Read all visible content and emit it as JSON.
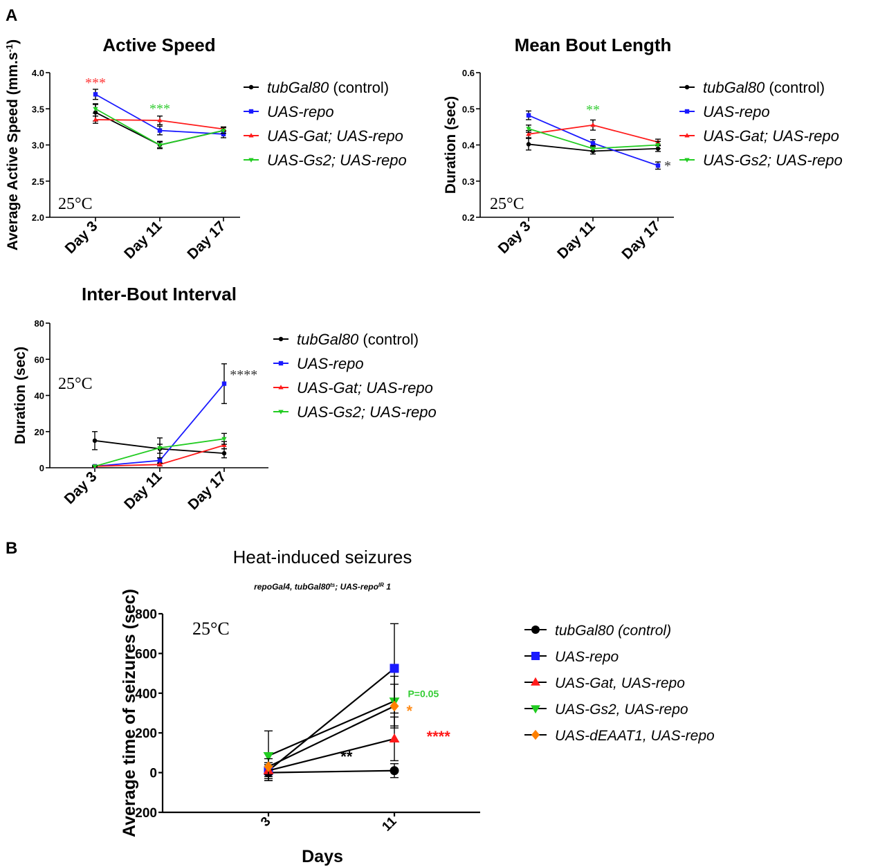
{
  "figure": {
    "panel_a_label": "A",
    "panel_b_label": "B"
  },
  "chart_data": [
    {
      "id": "speed",
      "type": "line",
      "title": "Active Speed",
      "ylabel": "Average Active Speed (mm.s",
      "ylabel_sup": "-1",
      "ylabel_close": ")",
      "categories": [
        "Day 3",
        "Day 11",
        "Day 17"
      ],
      "ylim": [
        2.0,
        4.0
      ],
      "yticks": [
        2.0,
        2.5,
        3.0,
        3.5,
        4.0
      ],
      "ytick_labels": [
        "2.0",
        "2.5",
        "3.0",
        "3.5",
        "4.0"
      ],
      "grid": false,
      "legend": "right",
      "temperature": "25°C",
      "series": [
        {
          "name_italic": "tubGal80",
          "name_rest": " (control)",
          "color": "#000000",
          "marker": "circle",
          "values": [
            3.45,
            3.0,
            3.2
          ],
          "errors": [
            0.12,
            0.05,
            0.04
          ]
        },
        {
          "name_italic": "UAS-repo",
          "name_rest": "",
          "color": "#1a1aff",
          "marker": "square",
          "values": [
            3.7,
            3.2,
            3.15
          ],
          "errors": [
            0.07,
            0.06,
            0.05
          ]
        },
        {
          "name_italic": "UAS-Gat; UAS-repo",
          "name_rest": "",
          "color": "#ff1a1a",
          "marker": "triangle-up",
          "values": [
            3.35,
            3.34,
            3.22
          ],
          "errors": [
            0.05,
            0.06,
            0.03
          ]
        },
        {
          "name_italic": "UAS-Gs2; UAS-repo",
          "name_rest": "",
          "color": "#22cc22",
          "marker": "triangle-down",
          "values": [
            3.5,
            3.0,
            3.2
          ],
          "errors": [
            0.06,
            0.04,
            0.04
          ]
        }
      ],
      "annotations": [
        {
          "text": "***",
          "color": "#ff3333",
          "cat": 0,
          "y": 3.8
        },
        {
          "text": "***",
          "color": "#33cc33",
          "cat": 1,
          "y": 3.44
        }
      ]
    },
    {
      "id": "bout",
      "type": "line",
      "title": "Mean Bout Length",
      "ylabel": "Duration (sec)",
      "categories": [
        "Day 3",
        "Day 11",
        "Day 17"
      ],
      "ylim": [
        0.2,
        0.6
      ],
      "yticks": [
        0.2,
        0.3,
        0.4,
        0.5,
        0.6
      ],
      "ytick_labels": [
        "0.2",
        "0.3",
        "0.4",
        "0.5",
        "0.6"
      ],
      "grid": false,
      "legend": "right",
      "temperature": "25°C",
      "series": [
        {
          "name_italic": "tubGal80",
          "name_rest": " (control)",
          "color": "#000000",
          "marker": "circle",
          "values": [
            0.402,
            0.383,
            0.39
          ],
          "errors": [
            0.016,
            0.008,
            0.008
          ]
        },
        {
          "name_italic": "UAS-repo",
          "name_rest": "",
          "color": "#1a1aff",
          "marker": "square",
          "values": [
            0.482,
            0.405,
            0.343
          ],
          "errors": [
            0.012,
            0.01,
            0.01
          ]
        },
        {
          "name_italic": "UAS-Gat; UAS-repo",
          "name_rest": "",
          "color": "#ff1a1a",
          "marker": "triangle-up",
          "values": [
            0.43,
            0.455,
            0.408
          ],
          "errors": [
            0.01,
            0.014,
            0.008
          ]
        },
        {
          "name_italic": "UAS-Gs2; UAS-repo",
          "name_rest": "",
          "color": "#22cc22",
          "marker": "triangle-down",
          "values": [
            0.445,
            0.39,
            0.4
          ],
          "errors": [
            0.01,
            0.008,
            0.01
          ]
        }
      ],
      "annotations": [
        {
          "text": "**",
          "color": "#33cc33",
          "cat": 1,
          "y": 0.485
        },
        {
          "text": "*",
          "color": "#333333",
          "cat": 2.15,
          "y": 0.33
        }
      ]
    },
    {
      "id": "ibi",
      "type": "line",
      "title": "Inter-Bout Interval",
      "ylabel": "Duration (sec)",
      "categories": [
        "Day 3",
        "Day 11",
        "Day 17"
      ],
      "ylim": [
        0,
        80
      ],
      "yticks": [
        0,
        20,
        40,
        60,
        80
      ],
      "ytick_labels": [
        "0",
        "20",
        "40",
        "60",
        "80"
      ],
      "grid": false,
      "legend": "right",
      "temperature": "25°C",
      "series": [
        {
          "name_italic": "tubGal80",
          "name_rest": " (control)",
          "color": "#000000",
          "marker": "circle",
          "values": [
            15,
            10.5,
            8
          ],
          "errors": [
            5,
            2.5,
            2.5
          ]
        },
        {
          "name_italic": "UAS-repo",
          "name_rest": "",
          "color": "#1a1aff",
          "marker": "square",
          "values": [
            0.8,
            4,
            46.5
          ],
          "errors": [
            0.4,
            1.5,
            11
          ]
        },
        {
          "name_italic": "UAS-Gat; UAS-repo",
          "name_rest": "",
          "color": "#ff1a1a",
          "marker": "triangle-up",
          "values": [
            0.8,
            1.8,
            12.5
          ],
          "errors": [
            0.3,
            0.8,
            2
          ]
        },
        {
          "name_italic": "UAS-Gs2; UAS-repo",
          "name_rest": "",
          "color": "#22cc22",
          "marker": "triangle-down",
          "values": [
            0.8,
            11,
            16
          ],
          "errors": [
            0.4,
            5.5,
            3
          ]
        }
      ],
      "annotations": [
        {
          "text": "****",
          "color": "#333333",
          "cat": 2.3,
          "y": 49
        }
      ]
    },
    {
      "id": "seizure",
      "type": "line",
      "title": "Heat-induced seizures",
      "subtitle_parts": [
        {
          "t": "repoGal4, tubGal80",
          "sup": false
        },
        {
          "t": "ts",
          "sup": true
        },
        {
          "t": "; UAS-repo",
          "sup": false
        },
        {
          "t": "IR",
          "sup": true
        },
        {
          "t": " 1",
          "sup": false
        }
      ],
      "xlabel": "Days",
      "ylabel": "Average time of seizures (sec)",
      "categories": [
        "3",
        "11"
      ],
      "ylim": [
        -200,
        800
      ],
      "yticks": [
        -200,
        0,
        200,
        400,
        600,
        800
      ],
      "ytick_labels": [
        "-200",
        "0",
        "200",
        "400",
        "600",
        "800"
      ],
      "grid": false,
      "legend": "right",
      "temperature": "25°C",
      "series": [
        {
          "name_italic": "tubGal80 (control)",
          "name_rest": "",
          "color": "#000000",
          "marker": "circle",
          "values": [
            0,
            10
          ],
          "errors": [
            40,
            35
          ]
        },
        {
          "name_italic": "UAS-repo",
          "name_rest": "",
          "color": "#1a1aff",
          "marker": "square",
          "values": [
            10,
            525
          ],
          "errors": [
            40,
            225
          ]
        },
        {
          "name_italic": "UAS-Gat, UAS-repo",
          "name_rest": "",
          "color": "#ff1a1a",
          "marker": "triangle-up",
          "values": [
            10,
            170
          ],
          "errors": [
            30,
            110
          ]
        },
        {
          "name_italic": "UAS-Gs2, UAS-repo",
          "name_rest": "",
          "color": "#22cc22",
          "marker": "triangle-down",
          "values": [
            85,
            360
          ],
          "errors": [
            125,
            125
          ]
        },
        {
          "name_italic": "UAS-dEAAT1, UAS-repo",
          "name_rest": "",
          "color": "#ff8000",
          "marker": "diamond",
          "values": [
            30,
            335
          ],
          "errors": [
            40,
            110
          ]
        }
      ],
      "annotations": [
        {
          "text": "P=0.05",
          "color": "#33cc33",
          "cat": 1.23,
          "y": 380,
          "small": true
        },
        {
          "text": "*",
          "color": "#ff8c1a",
          "cat": 1.12,
          "y": 285
        },
        {
          "text": "****",
          "color": "#ff1a1a",
          "cat": 1.35,
          "y": 155
        },
        {
          "text": "**",
          "color": "#000000",
          "cat": 0.62,
          "y": 55
        }
      ]
    }
  ]
}
